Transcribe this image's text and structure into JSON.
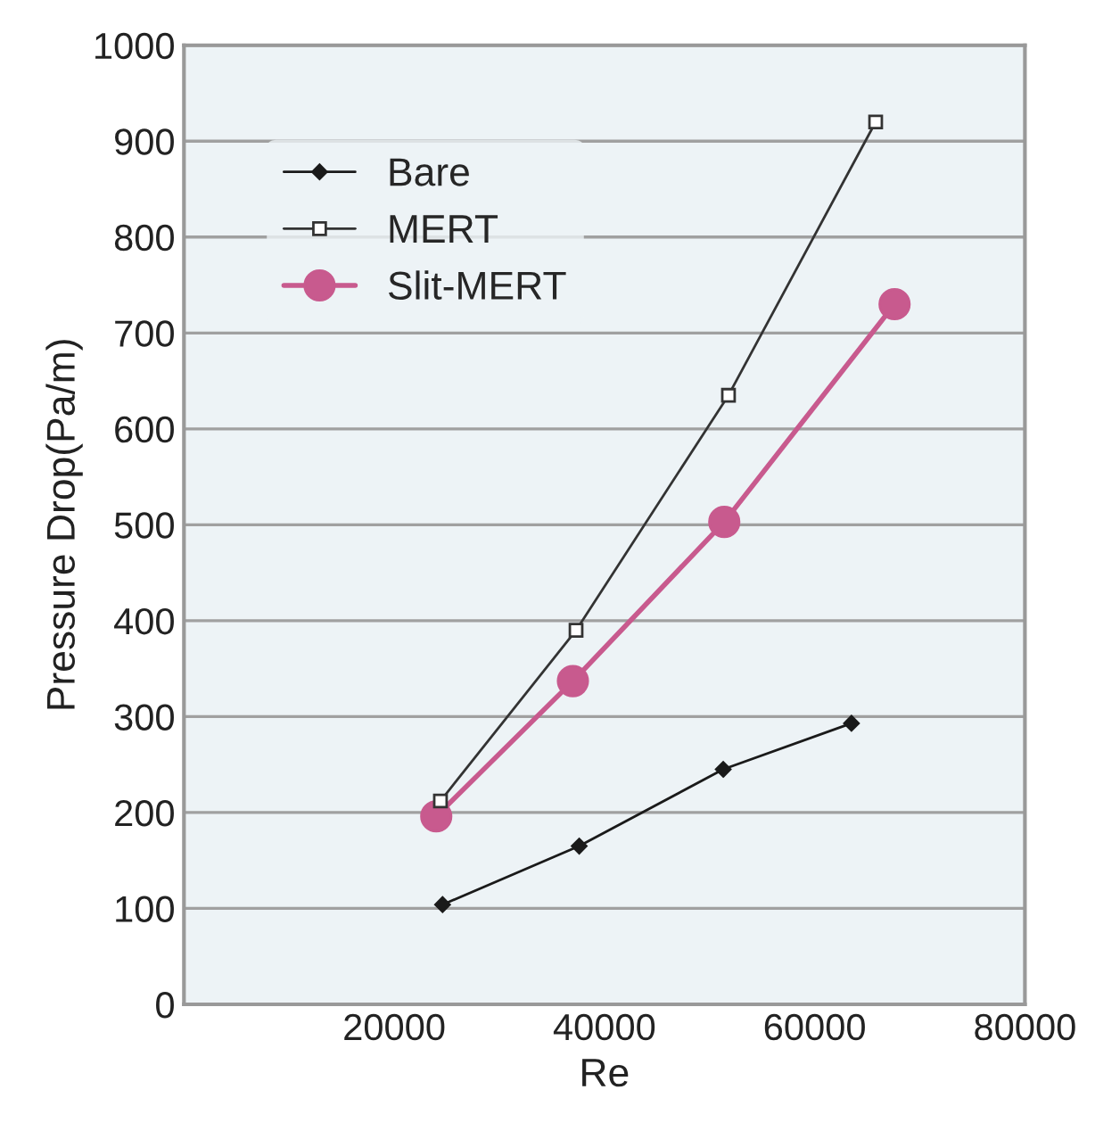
{
  "chart_data": {
    "type": "line",
    "xlabel": "Re",
    "ylabel": "Pressure Drop(Pa/m)",
    "xlim": [
      0,
      80000
    ],
    "xticks": [
      20000,
      40000,
      60000,
      80000
    ],
    "ylim": [
      0,
      1000
    ],
    "yticks": [
      0,
      100,
      200,
      300,
      400,
      500,
      600,
      700,
      800,
      900,
      1000
    ],
    "grid": "y",
    "legend": "top left",
    "series": [
      {
        "name": "Bare",
        "color": "#1a1a1a",
        "marker": "diamond",
        "x": [
          24600,
          37600,
          51300,
          63500
        ],
        "values": [
          104,
          165,
          245,
          293
        ]
      },
      {
        "name": "MERT",
        "color": "#333333",
        "marker": "square",
        "x": [
          24400,
          37300,
          51800,
          65800
        ],
        "values": [
          212,
          390,
          635,
          920
        ]
      },
      {
        "name": "Slit-MERT",
        "color": "#c85a8e",
        "marker": "circle",
        "x": [
          24000,
          37000,
          51400,
          67600
        ],
        "values": [
          196,
          337,
          503,
          730
        ]
      }
    ]
  }
}
